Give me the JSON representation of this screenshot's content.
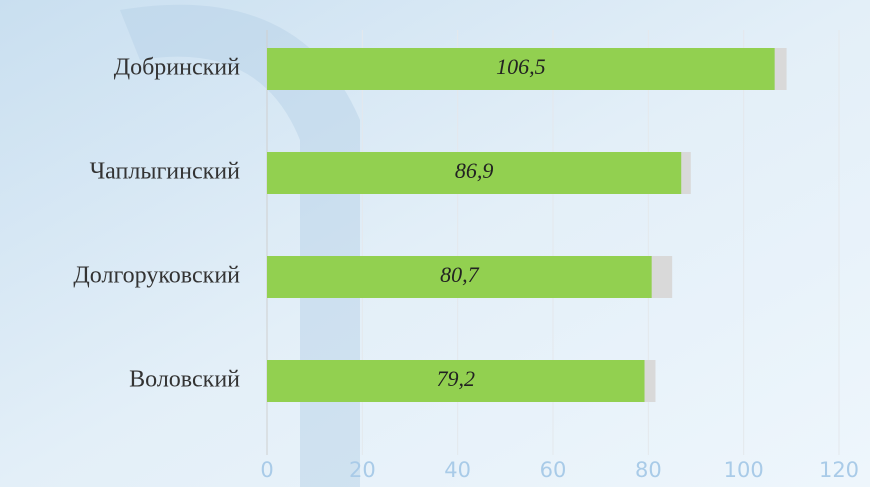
{
  "chart_data": {
    "type": "bar",
    "orientation": "horizontal",
    "categories": [
      "Добринский",
      "Чаплыгинский",
      "Долгоруковский",
      "Воловский"
    ],
    "series": [
      {
        "color": "#d9d9d9",
        "values": [
          109,
          88.9,
          85,
          81.5
        ]
      },
      {
        "color": "#92d050",
        "values": [
          106.5,
          86.9,
          80.7,
          79.2
        ],
        "value_labels": [
          "106,5",
          "86,9",
          "80,7",
          "79,2"
        ]
      }
    ],
    "xlim": [
      0,
      120
    ],
    "xticks": [
      0,
      20,
      40,
      60,
      80,
      100,
      120
    ],
    "grid": true
  }
}
